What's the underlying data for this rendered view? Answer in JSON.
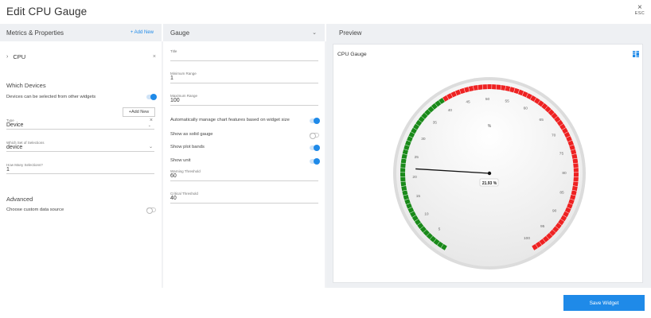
{
  "header": {
    "title": "Edit CPU Gauge",
    "close_icon": "×",
    "close_hint": "ESC"
  },
  "metrics": {
    "heading": "Metrics & Properties",
    "add_new": "+ Add New",
    "item_label": "CPU",
    "item_chevron": "›",
    "item_remove": "×",
    "which_devices_title": "Which Devices",
    "devices_selectable_label": "Devices can be selected from other widgets",
    "devices_selectable_on": true,
    "add_new_button": "+Add New",
    "type_label": "Type",
    "type_value": "Device",
    "type_remove": "×",
    "selection_set_label": "Which Set of Selections",
    "selection_set_value": "device",
    "how_many_label": "How Many Selections?",
    "how_many_value": "1",
    "advanced_title": "Advanced",
    "custom_source_label": "Choose custom data source",
    "custom_source_on": false
  },
  "gauge_settings": {
    "heading": "Gauge",
    "chevron": "⌄",
    "title_label": "Title",
    "title_value": "",
    "min_label": "Minimum Range",
    "min_value": "1",
    "max_label": "Maximum Range",
    "max_value": "100",
    "auto_manage_label": "Automatically manage chart features based on widget size",
    "auto_manage_on": true,
    "solid_label": "Show as solid gauge",
    "solid_on": false,
    "plot_bands_label": "Show plot bands",
    "plot_bands_on": true,
    "unit_label": "Show unit",
    "unit_on": true,
    "warning_label": "Warning Threshold",
    "warning_value": "60",
    "critical_label": "Critical Threshold",
    "critical_value": "40"
  },
  "preview": {
    "heading": "Preview",
    "card_title": "CPU Gauge",
    "grid_icon": "grid-view-icon",
    "unit": "%",
    "value_label": "21.93 %",
    "value": 21.93,
    "ticks": [
      "5",
      "10",
      "15",
      "20",
      "25",
      "30",
      "35",
      "40",
      "45",
      "50",
      "55",
      "60",
      "65",
      "70",
      "75",
      "80",
      "85",
      "90",
      "95",
      "100"
    ],
    "colors": {
      "green": "#1a8a1a",
      "red": "#ee2222",
      "accent": "#1f8ae8"
    }
  },
  "footer": {
    "save_label": "Save Widget"
  }
}
